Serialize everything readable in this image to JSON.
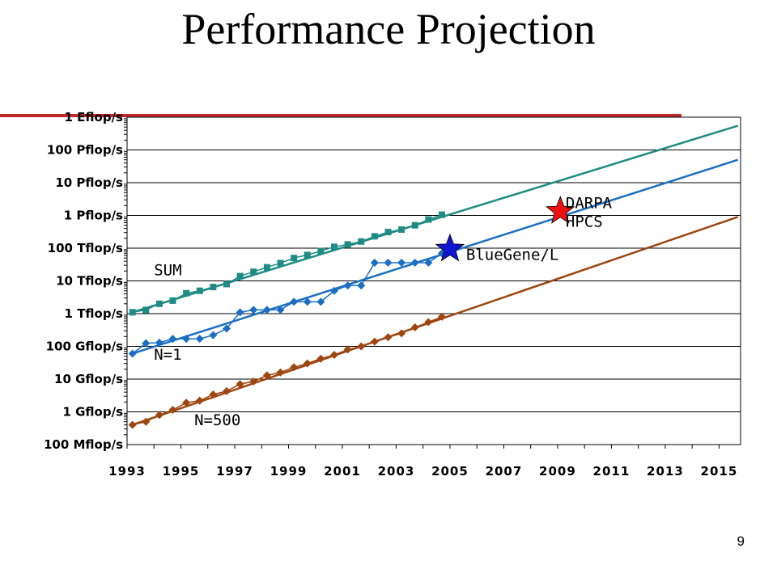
{
  "slide": {
    "title": "Performance Projection",
    "page_number": "9"
  },
  "colors": {
    "sum": "#1e8c84",
    "n1": "#1a6fc4",
    "n500": "#9e4510",
    "accent": "#c0282d",
    "star_blue": "#1414d4",
    "star_red": "#ee1111"
  },
  "chart_data": {
    "type": "line",
    "y_scale": "log",
    "y_unit": "flop/s",
    "xlim": [
      1993,
      2015.8
    ],
    "ylim": [
      100000000.0,
      1e+18
    ],
    "grid": true,
    "x_ticks": [
      "1993",
      "1995",
      "1997",
      "1999",
      "2001",
      "2003",
      "2005",
      "2007",
      "2009",
      "2011",
      "2013",
      "2015"
    ],
    "y_ticks": [
      {
        "value": 100000000.0,
        "label": "100 Mflop/s"
      },
      {
        "value": 1000000000.0,
        "label": "1 Gflop/s"
      },
      {
        "value": 10000000000.0,
        "label": "10 Gflop/s"
      },
      {
        "value": 100000000000.0,
        "label": "100 Gflop/s"
      },
      {
        "value": 1000000000000.0,
        "label": "1 Tflop/s"
      },
      {
        "value": 10000000000000.0,
        "label": "10 Tflop/s"
      },
      {
        "value": 100000000000000.0,
        "label": "100 Tflop/s"
      },
      {
        "value": 1000000000000000.0,
        "label": "1 Pflop/s"
      },
      {
        "value": 1e+16,
        "label": "10 Pflop/s"
      },
      {
        "value": 1e+17,
        "label": "100 Pflop/s"
      },
      {
        "value": 1e+18,
        "label": "1 Eflop/s"
      }
    ],
    "series": [
      {
        "name": "SUM",
        "marker": "square",
        "x": [
          1993.2,
          1993.7,
          1994.2,
          1994.7,
          1995.2,
          1995.7,
          1996.2,
          1996.7,
          1997.2,
          1997.7,
          1998.2,
          1998.7,
          1999.2,
          1999.7,
          2000.2,
          2000.7,
          2001.2,
          2001.7,
          2002.2,
          2002.7,
          2003.2,
          2003.7,
          2004.2,
          2004.7
        ],
        "y": [
          1100000000000.0,
          1300000000000.0,
          2000000000000.0,
          2500000000000.0,
          4200000000000.0,
          5000000000000.0,
          6500000000000.0,
          8000000000000.0,
          14000000000000.0,
          19000000000000.0,
          26000000000000.0,
          35000000000000.0,
          50000000000000.0,
          62000000000000.0,
          82000000000000.0,
          110000000000000.0,
          130000000000000.0,
          160000000000000.0,
          230000000000000.0,
          310000000000000.0,
          370000000000000.0,
          500000000000000.0,
          750000000000000.0,
          1050000000000000.0
        ]
      },
      {
        "name": "N=1",
        "marker": "diamond",
        "x": [
          1993.2,
          1993.7,
          1994.2,
          1994.7,
          1995.2,
          1995.7,
          1996.2,
          1996.7,
          1997.2,
          1997.7,
          1998.2,
          1998.7,
          1999.2,
          1999.7,
          2000.2,
          2000.7,
          2001.2,
          2001.7,
          2002.2,
          2002.7,
          2003.2,
          2003.7,
          2004.2,
          2004.7
        ],
        "y": [
          60000000000.0,
          125000000000.0,
          130000000000.0,
          170000000000.0,
          170000000000.0,
          170000000000.0,
          220000000000.0,
          350000000000.0,
          1100000000000.0,
          1300000000000.0,
          1300000000000.0,
          1300000000000.0,
          2300000000000.0,
          2300000000000.0,
          2300000000000.0,
          5000000000000.0,
          7200000000000.0,
          7200000000000.0,
          36000000000000.0,
          36000000000000.0,
          36000000000000.0,
          36000000000000.0,
          36000000000000.0,
          70000000000000.0
        ]
      },
      {
        "name": "N=500",
        "marker": "diamond",
        "x": [
          1993.2,
          1993.7,
          1994.2,
          1994.7,
          1995.2,
          1995.7,
          1996.2,
          1996.7,
          1997.2,
          1997.7,
          1998.2,
          1998.7,
          1999.2,
          1999.7,
          2000.2,
          2000.7,
          2001.2,
          2001.7,
          2002.2,
          2002.7,
          2003.2,
          2003.7,
          2004.2,
          2004.7
        ],
        "y": [
          400000000.0,
          500000000.0,
          800000000.0,
          1150000000.0,
          1900000000.0,
          2200000000.0,
          3400000000.0,
          4300000000.0,
          7000000000.0,
          8500000000.0,
          13000000000.0,
          16000000000.0,
          23000000000.0,
          30000000000.0,
          42000000000.0,
          55000000000.0,
          80000000000.0,
          100000000000.0,
          140000000000.0,
          190000000000.0,
          250000000000.0,
          380000000000.0,
          550000000000.0,
          800000000000.0
        ]
      }
    ],
    "trend_lines": [
      {
        "series": "SUM",
        "x": [
          1993.2,
          2015.7
        ],
        "y": [
          1100000000000.0,
          5.5e+17
        ]
      },
      {
        "series": "N=1",
        "x": [
          1993.2,
          2015.7
        ],
        "y": [
          60000000000.0,
          5e+16
        ]
      },
      {
        "series": "N=500",
        "x": [
          1993.2,
          2015.7
        ],
        "y": [
          400000000.0,
          900000000000000.0
        ]
      }
    ],
    "annotations": [
      {
        "text": "SUM",
        "x": 1994.0,
        "y": 22000000000000.0
      },
      {
        "text": "N=1",
        "x": 1994.0,
        "y": 58000000000.0
      },
      {
        "text": "N=500",
        "x": 1995.5,
        "y": 580000000.0
      },
      {
        "text": "BlueGene/L",
        "x": 2005.6,
        "y": 65000000000000.0,
        "marker": "star",
        "marker_x": 2005.0,
        "marker_y": 95000000000000.0
      },
      {
        "text": "DARPA",
        "x": 2009.3,
        "y": 2500000000000000.0,
        "marker": "star",
        "marker_x": 2009.1,
        "marker_y": 1350000000000000.0
      },
      {
        "text": "HPCS",
        "x": 2009.3,
        "y": 680000000000000.0
      }
    ]
  }
}
